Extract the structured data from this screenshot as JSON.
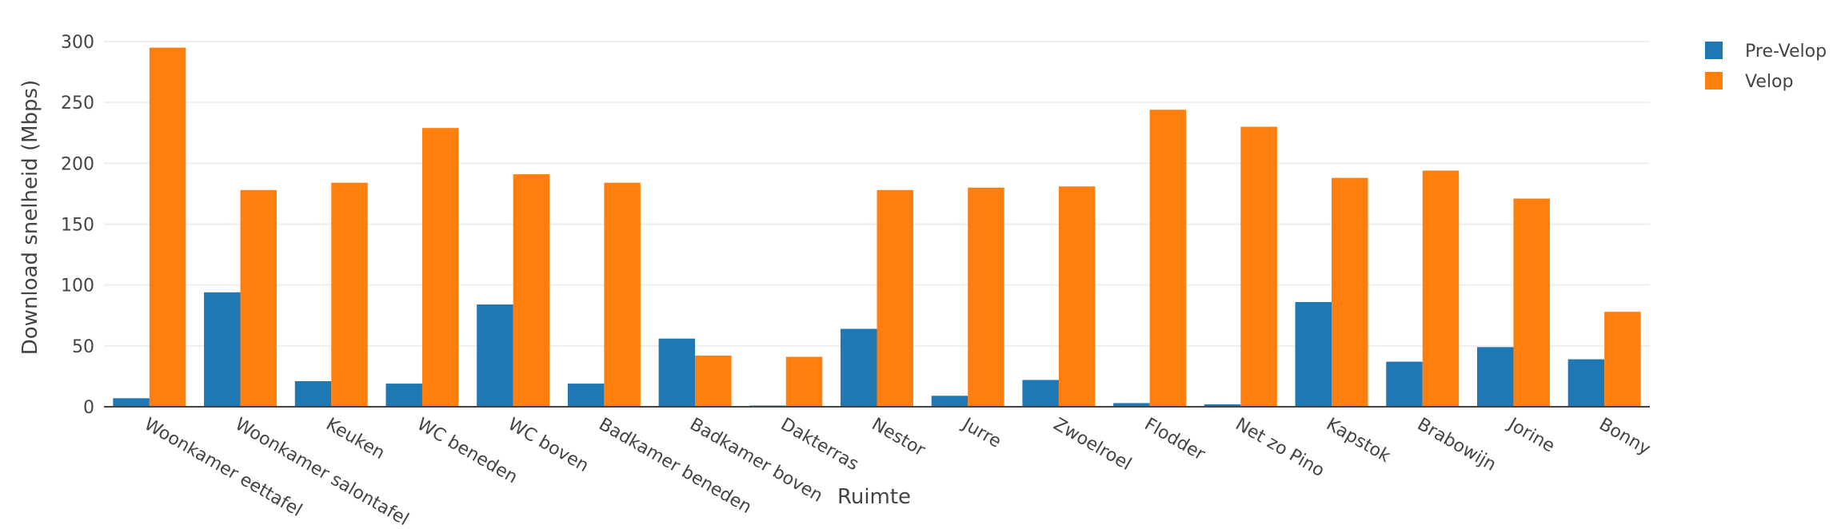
{
  "chart_data": {
    "type": "bar",
    "title": "",
    "xlabel": "Ruimte",
    "ylabel": "Download snelheid (Mbps)",
    "ylim": [
      0,
      300
    ],
    "yticks": [
      0,
      50,
      100,
      150,
      200,
      250,
      300
    ],
    "grid": true,
    "legend_position": "top-right",
    "categories": [
      "Woonkamer eettafel",
      "Woonkamer salontafel",
      "Keuken",
      "WC beneden",
      "WC boven",
      "Badkamer beneden",
      "Badkamer boven",
      "Dakterras",
      "Nestor",
      "Jurre",
      "Zwoelroel",
      "Flodder",
      "Net zo Pino",
      "Kapstok",
      "Brabowijn",
      "Jorine",
      "Bonny"
    ],
    "series": [
      {
        "name": "Pre-Velop",
        "color": "#1f77b4",
        "values": [
          7,
          94,
          21,
          19,
          84,
          19,
          56,
          1,
          64,
          9,
          22,
          3,
          2,
          86,
          37,
          49,
          39
        ]
      },
      {
        "name": "Velop",
        "color": "#ff7f0e",
        "values": [
          295,
          178,
          184,
          229,
          191,
          184,
          42,
          41,
          178,
          180,
          181,
          244,
          230,
          188,
          194,
          171,
          78
        ]
      }
    ]
  }
}
